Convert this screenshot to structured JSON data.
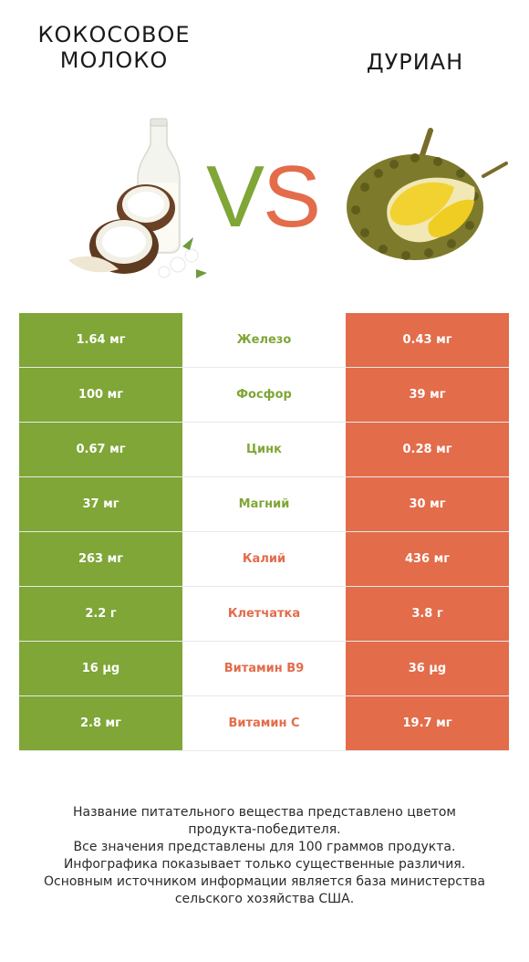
{
  "left_food": {
    "title_line1": "КОКОСОВОЕ",
    "title_line2": "МОЛОКО",
    "color": "#7fa637"
  },
  "right_food": {
    "title": "ДУРИАН",
    "color": "#e36c4b"
  },
  "vs": {
    "v": "V",
    "s": "S"
  },
  "rows": [
    {
      "left": "1.64 мг",
      "nutrient": "Железо",
      "right": "0.43 мг",
      "winner": "left"
    },
    {
      "left": "100 мг",
      "nutrient": "Фосфор",
      "right": "39 мг",
      "winner": "left"
    },
    {
      "left": "0.67 мг",
      "nutrient": "Цинк",
      "right": "0.28 мг",
      "winner": "left"
    },
    {
      "left": "37 мг",
      "nutrient": "Магний",
      "right": "30 мг",
      "winner": "left"
    },
    {
      "left": "263 мг",
      "nutrient": "Калий",
      "right": "436 мг",
      "winner": "right"
    },
    {
      "left": "2.2 г",
      "nutrient": "Клетчатка",
      "right": "3.8 г",
      "winner": "right"
    },
    {
      "left": "16 µg",
      "nutrient": "Витамин B9",
      "right": "36 µg",
      "winner": "right"
    },
    {
      "left": "2.8 мг",
      "nutrient": "Витамин C",
      "right": "19.7 мг",
      "winner": "right"
    }
  ],
  "footer": [
    "Название питательного вещества представлено цветом",
    "продукта-победителя.",
    "Все значения представлены для 100 граммов продукта.",
    "Инфографика показывает только существенные различия.",
    "Основным источником информации является база министерства",
    "сельского хозяйства США."
  ]
}
